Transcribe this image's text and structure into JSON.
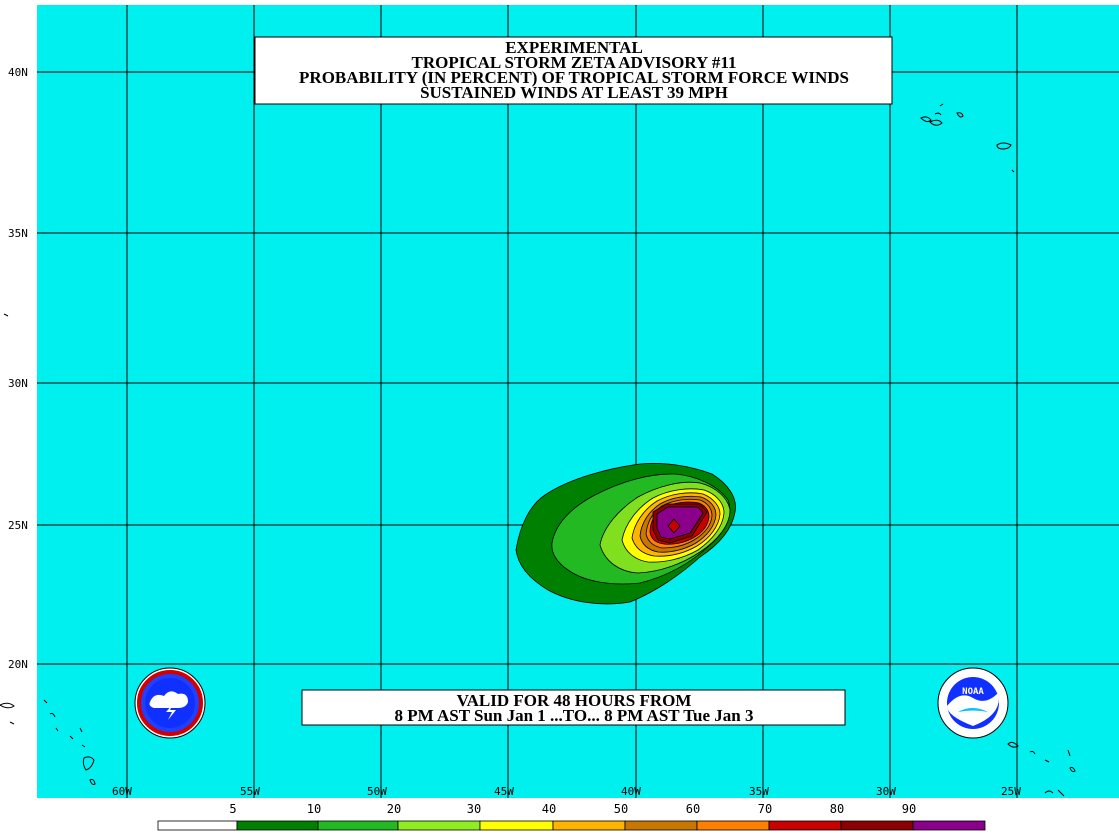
{
  "title": {
    "lines": [
      "EXPERIMENTAL",
      "TROPICAL STORM ZETA ADVISORY #11",
      "PROBABILITY (IN PERCENT) OF TROPICAL STORM FORCE WINDS",
      "SUSTAINED WINDS AT LEAST 39 MPH"
    ]
  },
  "valid": {
    "line1": "VALID FOR 48 HOURS FROM",
    "line2": "8 PM AST Sun Jan 1 ...TO... 8 PM AST Tue Jan 3"
  },
  "axes": {
    "latitude_labels": [
      "40N",
      "35N",
      "30N",
      "25N",
      "20N"
    ],
    "longitude_labels": [
      "60W",
      "55W",
      "50W",
      "45W",
      "40W",
      "35W",
      "30W",
      "25W"
    ]
  },
  "legend": {
    "labels": [
      "5",
      "10",
      "20",
      "30",
      "40",
      "50",
      "60",
      "70",
      "80",
      "90"
    ],
    "colors": [
      "#ffffff",
      "#008000",
      "#22b922",
      "#00e000",
      "#90ee20",
      "#ffff00",
      "#ffb400",
      "#c87800",
      "#ff8000",
      "#c80000",
      "#8b0000",
      "#8b008b"
    ]
  },
  "colors": {
    "ocean": "#00f0f0",
    "grid": "#000000"
  },
  "logos": {
    "nws": "national-weather-service-logo",
    "noaa": "NOAA"
  }
}
